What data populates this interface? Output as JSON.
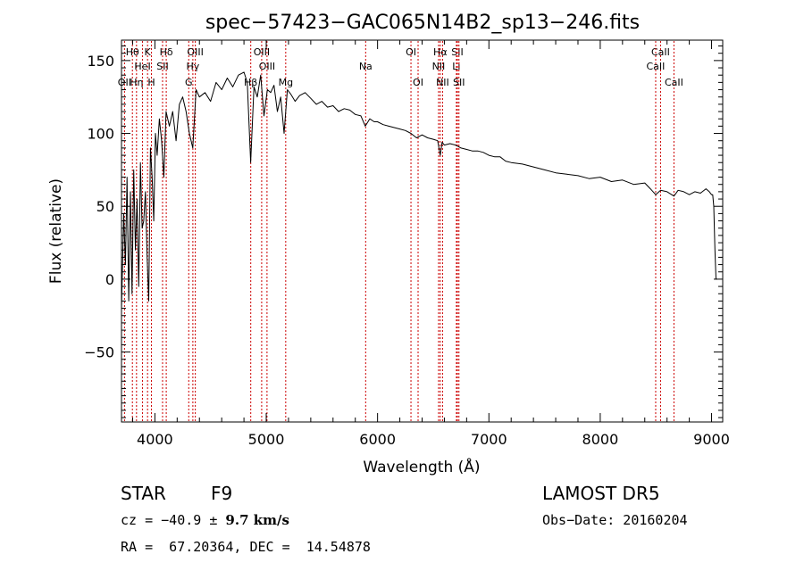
{
  "chart_data": {
    "type": "line",
    "title": "spec−57423−GAC065N14B2_sp13−246.fits",
    "xlabel": "Wavelength (Å)",
    "ylabel": "Flux (relative)",
    "xlim": [
      3700,
      9100
    ],
    "ylim": [
      -98,
      164
    ],
    "x_ticks": [
      4000,
      5000,
      6000,
      7000,
      8000,
      9000
    ],
    "y_ticks": [
      -50,
      0,
      50,
      100,
      150
    ],
    "y_tick_labels": [
      "−50",
      "0",
      "50",
      "100",
      "150"
    ],
    "grid": false,
    "line_color": "#000000",
    "marker_color": "#cc0000",
    "series": [
      {
        "x": [
          3700,
          3720,
          3735,
          3750,
          3765,
          3780,
          3795,
          3810,
          3825,
          3840,
          3855,
          3870,
          3885,
          3900,
          3915,
          3930,
          3945,
          3960,
          3975,
          3990,
          4005,
          4020,
          4040,
          4060,
          4080,
          4100,
          4130,
          4160,
          4190,
          4220,
          4250,
          4280,
          4310,
          4340,
          4370,
          4400,
          4450,
          4500,
          4550,
          4600,
          4650,
          4700,
          4750,
          4800,
          4830,
          4860,
          4890,
          4920,
          4950,
          4980,
          5010,
          5040,
          5070,
          5100,
          5130,
          5160,
          5190,
          5220,
          5260,
          5300,
          5350,
          5400,
          5450,
          5500,
          5550,
          5600,
          5650,
          5700,
          5750,
          5800,
          5850,
          5890,
          5930,
          5970,
          6000,
          6050,
          6100,
          6150,
          6200,
          6250,
          6300,
          6350,
          6400,
          6450,
          6500,
          6540,
          6563,
          6580,
          6600,
          6650,
          6700,
          6750,
          6800,
          6850,
          6900,
          6950,
          7000,
          7050,
          7100,
          7150,
          7200,
          7300,
          7400,
          7500,
          7600,
          7700,
          7800,
          7900,
          8000,
          8100,
          8200,
          8300,
          8400,
          8450,
          8498,
          8542,
          8600,
          8662,
          8700,
          8750,
          8800,
          8850,
          8900,
          8950,
          8980,
          9000,
          9010,
          9020,
          9030,
          9040,
          9050
        ],
        "y": [
          -20,
          45,
          10,
          70,
          -15,
          60,
          -10,
          75,
          20,
          55,
          -5,
          80,
          35,
          40,
          60,
          15,
          -15,
          90,
          70,
          40,
          100,
          85,
          110,
          95,
          70,
          115,
          105,
          115,
          95,
          120,
          125,
          115,
          100,
          90,
          130,
          125,
          128,
          122,
          135,
          130,
          138,
          132,
          140,
          142,
          135,
          80,
          132,
          125,
          140,
          112,
          130,
          128,
          133,
          115,
          125,
          100,
          130,
          127,
          122,
          126,
          128,
          124,
          120,
          122,
          118,
          119,
          115,
          117,
          116,
          113,
          112,
          105,
          110,
          108,
          108,
          106,
          105,
          104,
          103,
          102,
          100,
          97,
          99,
          97,
          96,
          95,
          85,
          94,
          92,
          93,
          92,
          90,
          89,
          88,
          88,
          87,
          85,
          84,
          84,
          81,
          80,
          79,
          77,
          75,
          73,
          72,
          71,
          69,
          70,
          67,
          68,
          65,
          66,
          62,
          58,
          61,
          60,
          57,
          61,
          60,
          58,
          60,
          59,
          62,
          60,
          58,
          58,
          50,
          20,
          0,
          0
        ]
      }
    ],
    "spectral_lines": [
      {
        "label": "OII",
        "wl": 3727,
        "row": 3
      },
      {
        "label": "Hθ",
        "wl": 3798,
        "row": 1
      },
      {
        "label": "Hη",
        "wl": 3835,
        "row": 3
      },
      {
        "label": "HeI",
        "wl": 3889,
        "row": 2
      },
      {
        "label": "K",
        "wl": 3934,
        "row": 1
      },
      {
        "label": "H",
        "wl": 3969,
        "row": 3
      },
      {
        "label": "SII",
        "wl": 4069,
        "row": 2
      },
      {
        "label": "Hδ",
        "wl": 4102,
        "row": 1
      },
      {
        "label": "G",
        "wl": 4304,
        "row": 3
      },
      {
        "label": "Hγ",
        "wl": 4341,
        "row": 2
      },
      {
        "label": "OIII",
        "wl": 4363,
        "row": 1
      },
      {
        "label": "OIII",
        "wl": 4959,
        "row": 1
      },
      {
        "label": "OIII",
        "wl": 5007,
        "row": 2
      },
      {
        "label": "Hβ",
        "wl": 4861,
        "row": 3
      },
      {
        "label": "Mg",
        "wl": 5175,
        "row": 3
      },
      {
        "label": "Na",
        "wl": 5893,
        "row": 2
      },
      {
        "label": "OI",
        "wl": 6300,
        "row": 1
      },
      {
        "label": "OI",
        "wl": 6364,
        "row": 3
      },
      {
        "label": "Hα",
        "wl": 6563,
        "row": 1
      },
      {
        "label": "NII",
        "wl": 6548,
        "row": 2
      },
      {
        "label": "NII",
        "wl": 6584,
        "row": 3
      },
      {
        "label": "SII",
        "wl": 6717,
        "row": 1
      },
      {
        "label": "Li",
        "wl": 6708,
        "row": 2
      },
      {
        "label": "SII",
        "wl": 6731,
        "row": 3
      },
      {
        "label": "CaII",
        "wl": 8542,
        "row": 1
      },
      {
        "label": "CaII",
        "wl": 8498,
        "row": 2
      },
      {
        "label": "CaII",
        "wl": 8662,
        "row": 3
      }
    ]
  },
  "info": {
    "object_class": "STAR",
    "subclass": "F9",
    "survey": "LAMOST DR5",
    "cz_prefix": "cz = −40.9 ± ",
    "cz_bold": "9.7 km/s",
    "obs_date": "Obs−Date: 20160204",
    "coords": "RA =  67.20364, DEC =  14.54878"
  }
}
